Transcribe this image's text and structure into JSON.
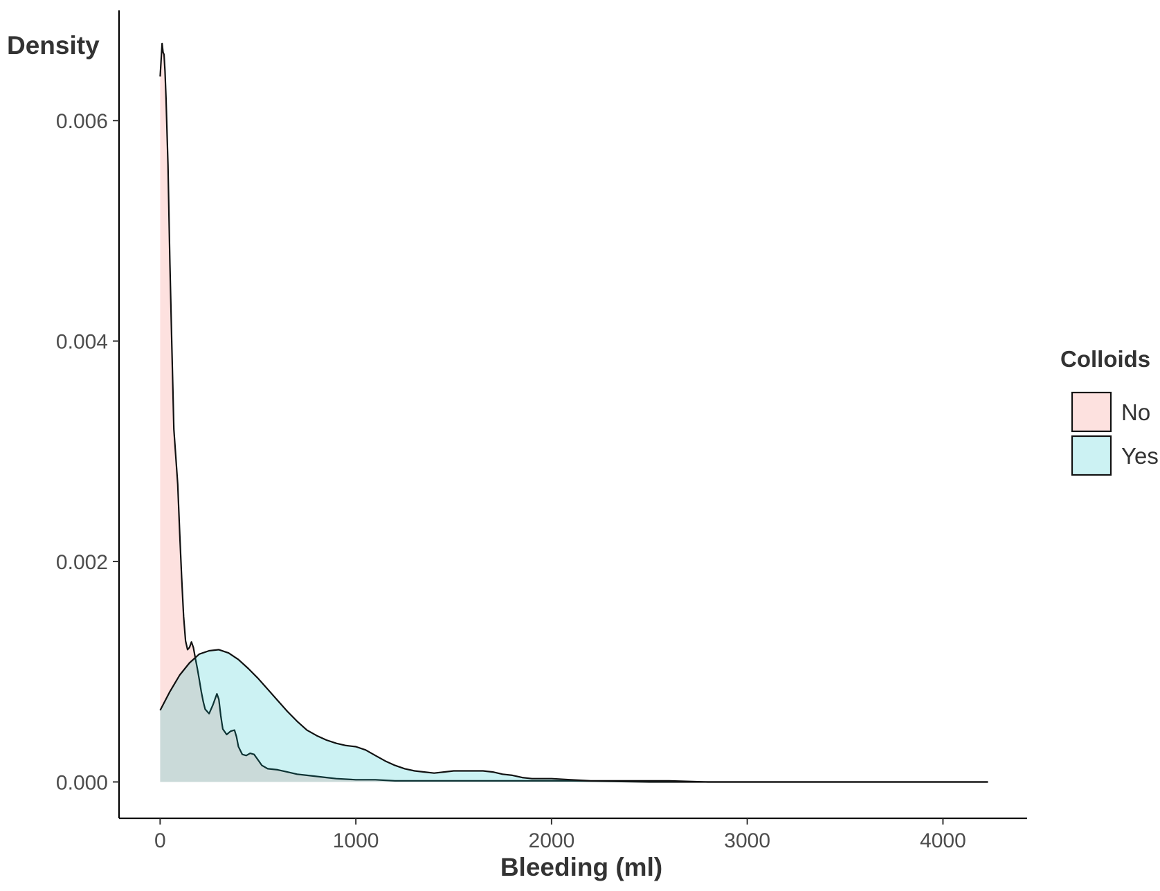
{
  "chart_data": {
    "type": "area",
    "subtype": "density",
    "xlabel": "Bleeding (ml)",
    "ylabel": "Density",
    "xlim": [
      -210,
      4430
    ],
    "ylim": [
      -0.00033,
      0.007
    ],
    "x_ticks": [
      0,
      1000,
      2000,
      3000,
      4000
    ],
    "y_ticks": [
      0.0,
      0.002,
      0.004,
      0.006
    ],
    "x_tick_labels": [
      "0",
      "1000",
      "2000",
      "3000",
      "4000"
    ],
    "y_tick_labels": [
      "0.000",
      "0.002",
      "0.004",
      "0.006"
    ],
    "grid": false,
    "legend": {
      "title": "Colloids",
      "position": "right"
    },
    "series": [
      {
        "name": "No",
        "fill": "#f8766d",
        "fill_opacity": 0.22,
        "x": [
          0,
          5,
          10,
          15,
          20,
          25,
          30,
          40,
          50,
          60,
          70,
          80,
          90,
          100,
          110,
          120,
          130,
          140,
          150,
          160,
          170,
          180,
          190,
          200,
          210,
          220,
          230,
          250,
          270,
          290,
          300,
          310,
          320,
          340,
          360,
          380,
          390,
          400,
          420,
          440,
          460,
          480,
          500,
          520,
          550,
          600,
          650,
          700,
          750,
          800,
          850,
          900,
          1000,
          1100,
          1200,
          1300,
          1400,
          1500,
          1700,
          1900,
          2100,
          2500,
          3000,
          3500,
          4000,
          4230
        ],
        "y": [
          0.0064,
          0.00655,
          0.0067,
          0.00662,
          0.0066,
          0.00645,
          0.0062,
          0.0056,
          0.0047,
          0.00395,
          0.0032,
          0.00295,
          0.0027,
          0.00225,
          0.00185,
          0.0015,
          0.00128,
          0.0012,
          0.00122,
          0.00127,
          0.00122,
          0.00112,
          0.00103,
          0.00093,
          0.00082,
          0.00073,
          0.00066,
          0.00062,
          0.0007,
          0.0008,
          0.00075,
          0.0006,
          0.00048,
          0.00043,
          0.00046,
          0.00047,
          0.00041,
          0.00032,
          0.00025,
          0.00024,
          0.00026,
          0.00025,
          0.0002,
          0.00015,
          0.00012,
          0.00011,
          9e-05,
          7e-05,
          6e-05,
          5e-05,
          4e-05,
          3e-05,
          2e-05,
          2e-05,
          1e-05,
          1e-05,
          1e-05,
          1e-05,
          1e-05,
          1e-05,
          1e-05,
          0.0,
          0.0,
          0.0,
          0.0,
          0.0
        ]
      },
      {
        "name": "Yes",
        "fill": "#00bfc4",
        "fill_opacity": 0.2,
        "x": [
          0,
          50,
          100,
          150,
          200,
          250,
          300,
          350,
          400,
          450,
          500,
          550,
          600,
          650,
          700,
          750,
          800,
          850,
          900,
          950,
          1000,
          1050,
          1100,
          1150,
          1200,
          1250,
          1300,
          1350,
          1400,
          1450,
          1500,
          1550,
          1600,
          1650,
          1700,
          1750,
          1800,
          1850,
          1900,
          2000,
          2100,
          2200,
          2400,
          2600,
          2800,
          3000,
          3500,
          4000,
          4230
        ],
        "y": [
          0.00065,
          0.00082,
          0.00097,
          0.00108,
          0.00116,
          0.00119,
          0.0012,
          0.00117,
          0.00111,
          0.00103,
          0.00094,
          0.00084,
          0.00074,
          0.00064,
          0.00055,
          0.00047,
          0.00042,
          0.00038,
          0.00035,
          0.00033,
          0.00032,
          0.00029,
          0.00024,
          0.00019,
          0.00015,
          0.00012,
          0.0001,
          9e-05,
          8e-05,
          9e-05,
          0.0001,
          0.0001,
          0.0001,
          0.0001,
          9e-05,
          7e-05,
          6e-05,
          4e-05,
          3e-05,
          3e-05,
          2e-05,
          1e-05,
          1e-05,
          1e-05,
          0.0,
          0.0,
          0.0,
          0.0,
          0.0
        ]
      }
    ]
  }
}
